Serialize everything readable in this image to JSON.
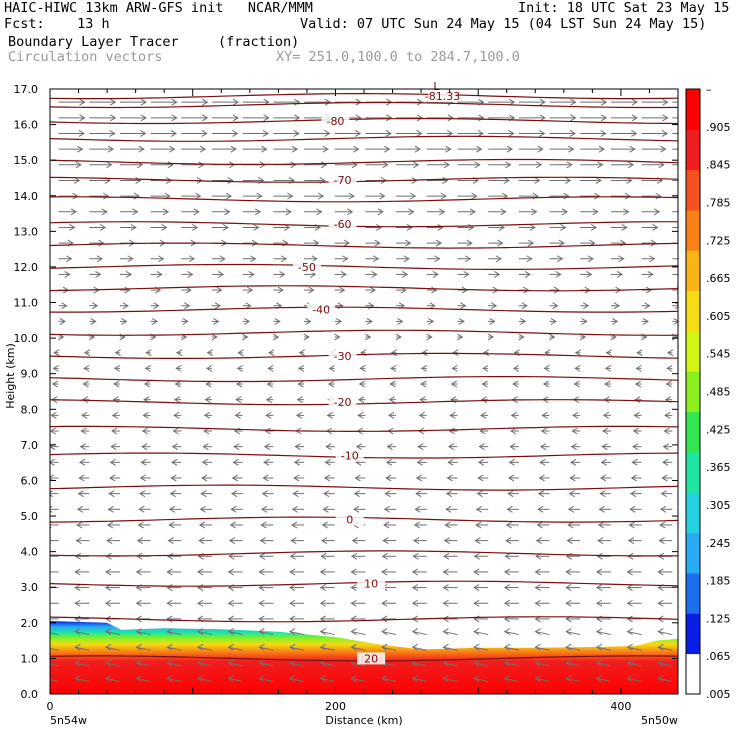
{
  "header": {
    "line1_left": "HAIC-HIWC 13km ARW-GFS init   NCAR/MMM",
    "line1_right": "Init: 18 UTC Sat 23 May 15",
    "line2_left": "Fcst:    13 h",
    "line2_right": "Valid: 07 UTC Sun 24 May 15 (04 LST Sun 24 May 15)",
    "line3_left": "Boundary Layer Tracer",
    "line3_mid": "(fraction)",
    "line4_left": "Circulation vectors",
    "line4_mid": "XY= 251.0,100.0 to 284.7,100.0"
  },
  "colors": {
    "contour": "#7a0e0e",
    "vector": "#6e6e6e",
    "scale": [
      "#ffffff",
      "#0a1ee6",
      "#1e6ef0",
      "#28aaf5",
      "#23d2e1",
      "#1ee6a0",
      "#32e650",
      "#8cf01e",
      "#d2f514",
      "#f5dc14",
      "#fab414",
      "#fa8214",
      "#f5501e",
      "#f01e1e",
      "#ff0000"
    ]
  },
  "chart_data": {
    "type": "cross-section",
    "ylabel": "Height (km)",
    "xlabel": "Distance (km)",
    "ylim": [
      0,
      17
    ],
    "xlim": [
      0,
      440
    ],
    "y_ticks": [
      "0.0",
      "1.0",
      "2.0",
      "3.0",
      "4.0",
      "5.0",
      "6.0",
      "7.0",
      "8.0",
      "9.0",
      "10.0",
      "11.0",
      "12.0",
      "13.0",
      "14.0",
      "15.0",
      "16.0",
      "17.0"
    ],
    "x_ticks": [
      {
        "value": 0,
        "label": "0"
      },
      {
        "value": 200,
        "label": "200"
      },
      {
        "value": 400,
        "label": "400"
      }
    ],
    "x_end_labels": {
      "left": "5n54w",
      "right": "5n50w"
    },
    "tracer_top_km": [
      [
        0,
        2.05
      ],
      [
        40,
        2.0
      ],
      [
        50,
        1.8
      ],
      [
        80,
        1.85
      ],
      [
        120,
        1.82
      ],
      [
        160,
        1.75
      ],
      [
        200,
        1.6
      ],
      [
        230,
        1.4
      ],
      [
        260,
        1.25
      ],
      [
        300,
        1.3
      ],
      [
        340,
        1.3
      ],
      [
        380,
        1.32
      ],
      [
        410,
        1.35
      ],
      [
        425,
        1.5
      ],
      [
        440,
        1.55
      ]
    ],
    "temperature_contours": [
      {
        "level": "-81.33",
        "height_km": 16.8,
        "label_x_km": 275,
        "marker": "L"
      },
      {
        "level": "-80",
        "height_km": 16.1,
        "label_x_km": 200
      },
      {
        "level": "-70",
        "height_km": 14.45,
        "label_x_km": 205
      },
      {
        "level": "-60",
        "height_km": 13.2,
        "label_x_km": 205
      },
      {
        "level": "-50",
        "height_km": 12.0,
        "label_x_km": 180
      },
      {
        "level": "-40",
        "height_km": 10.8,
        "label_x_km": 190
      },
      {
        "level": "-30",
        "height_km": 9.5,
        "label_x_km": 205
      },
      {
        "level": "-20",
        "height_km": 8.2,
        "label_x_km": 205
      },
      {
        "level": "-10",
        "height_km": 6.7,
        "label_x_km": 210
      },
      {
        "level": "0",
        "height_km": 4.9,
        "label_x_km": 210
      },
      {
        "level": "10",
        "height_km": 3.1,
        "label_x_km": 225
      },
      {
        "level": "20",
        "height_km": 1.0,
        "label_x_km": 225
      }
    ],
    "unlabeled_contours_km": [
      16.55,
      15.6,
      14.95,
      13.9,
      12.6,
      11.4,
      10.15,
      8.85,
      7.45,
      5.8,
      3.95,
      2.1
    ],
    "colorbar_labels": [
      "–",
      ".905",
      ".845",
      ".785",
      ".725",
      ".665",
      ".605",
      ".545",
      ".485",
      ".425",
      ".365",
      ".305",
      ".245",
      ".185",
      ".125",
      ".065",
      ".005"
    ],
    "vector_flow": {
      "upper_direction": "east",
      "lower_direction": "west",
      "reversal_height_km": 9.8
    }
  }
}
